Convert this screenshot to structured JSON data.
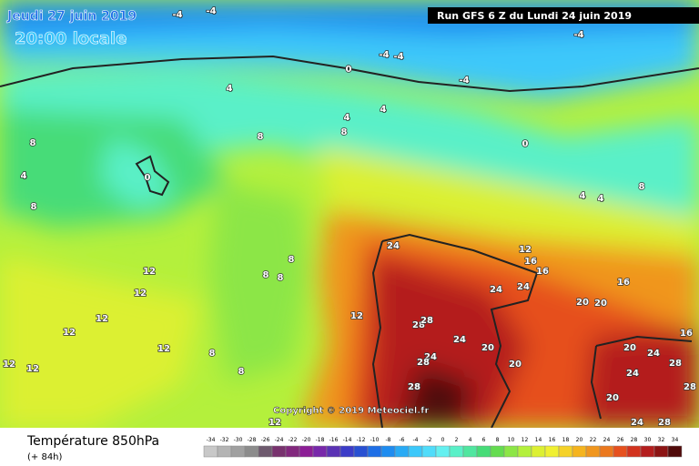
{
  "header": {
    "date": "Jeudi 27 juin 2019",
    "time": "20:00 locale",
    "run": "Run GFS 6 Z du Lundi 24 juin 2019"
  },
  "copyright": "Copyright © 2019 Meteociel.fr",
  "legend": {
    "title": "Température 850hPa",
    "subtitle": "(+ 84h)",
    "scale": [
      {
        "value": -34,
        "color": "#c8c8c8"
      },
      {
        "value": -32,
        "color": "#b4b4b4"
      },
      {
        "value": -30,
        "color": "#a0a0a0"
      },
      {
        "value": -28,
        "color": "#8c8c8c"
      },
      {
        "value": -26,
        "color": "#6e5a6e"
      },
      {
        "value": -24,
        "color": "#78326e"
      },
      {
        "value": -22,
        "color": "#82287d"
      },
      {
        "value": -20,
        "color": "#8c1e96"
      },
      {
        "value": -18,
        "color": "#7828aa"
      },
      {
        "value": -16,
        "color": "#5a32b4"
      },
      {
        "value": -14,
        "color": "#3c3cc8"
      },
      {
        "value": -12,
        "color": "#2850d2"
      },
      {
        "value": -10,
        "color": "#1e6ee6"
      },
      {
        "value": -8,
        "color": "#1e8cf0"
      },
      {
        "value": -6,
        "color": "#28aaf5"
      },
      {
        "value": -4,
        "color": "#3cc8fa"
      },
      {
        "value": -2,
        "color": "#50dcfa"
      },
      {
        "value": 0,
        "color": "#64f0f0"
      },
      {
        "value": 2,
        "color": "#5af0c8"
      },
      {
        "value": 4,
        "color": "#50e6a0"
      },
      {
        "value": 6,
        "color": "#46dc78"
      },
      {
        "value": 8,
        "color": "#64dc50"
      },
      {
        "value": 10,
        "color": "#8ce646"
      },
      {
        "value": 12,
        "color": "#b4f03c"
      },
      {
        "value": 14,
        "color": "#dcf032"
      },
      {
        "value": 16,
        "color": "#f0f032"
      },
      {
        "value": 18,
        "color": "#f5d228"
      },
      {
        "value": 20,
        "color": "#f5b41e"
      },
      {
        "value": 22,
        "color": "#f0961e"
      },
      {
        "value": 24,
        "color": "#eb781e"
      },
      {
        "value": 26,
        "color": "#e6501e"
      },
      {
        "value": 28,
        "color": "#d2321e"
      },
      {
        "value": 30,
        "color": "#b41e1e"
      },
      {
        "value": 32,
        "color": "#8c1414"
      },
      {
        "value": 34,
        "color": "#500a0a"
      }
    ]
  },
  "map": {
    "labels": [
      -4,
      -4,
      -4,
      -4,
      -4,
      -4,
      0,
      0,
      0,
      4,
      4,
      4,
      4,
      4,
      4,
      8,
      8,
      8,
      8,
      8,
      8,
      12,
      12,
      12,
      12,
      12,
      12,
      12,
      12,
      12,
      12,
      16,
      16,
      16,
      20,
      20,
      20,
      20,
      24,
      24,
      24,
      24,
      24,
      24,
      24,
      24,
      28,
      28,
      28,
      28,
      28,
      28,
      28,
      20,
      20,
      16,
      8,
      8,
      8,
      8
    ]
  }
}
